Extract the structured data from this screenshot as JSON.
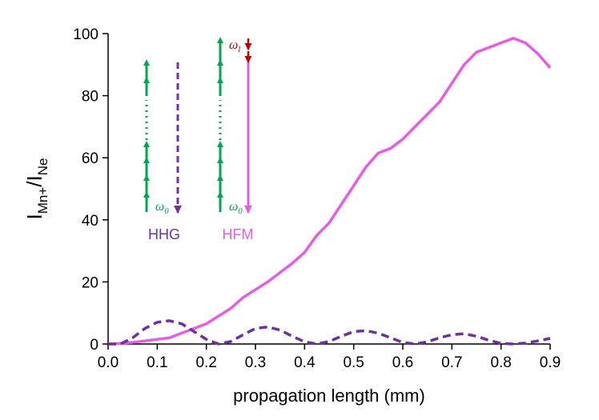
{
  "chart_data": {
    "type": "line",
    "xlabel": "propagation length (mm)",
    "ylabel": {
      "main1": "I",
      "sub1": "Mn+",
      "main2": "/I",
      "sub2": "Ne"
    },
    "x": [
      0,
      0.025,
      0.05,
      0.075,
      0.1,
      0.125,
      0.15,
      0.175,
      0.2,
      0.225,
      0.25,
      0.275,
      0.3,
      0.325,
      0.35,
      0.375,
      0.4,
      0.425,
      0.45,
      0.475,
      0.5,
      0.525,
      0.55,
      0.575,
      0.6,
      0.625,
      0.65,
      0.675,
      0.7,
      0.725,
      0.75,
      0.775,
      0.8,
      0.825,
      0.85,
      0.875,
      0.9
    ],
    "series": [
      {
        "name": "HFM",
        "color": "#e75ce6",
        "dash": false,
        "values": [
          0,
          0.2,
          0.5,
          1,
          1.5,
          2,
          3.5,
          5,
          6.5,
          9,
          11.5,
          15,
          17.5,
          20,
          23,
          26,
          29.5,
          35,
          39,
          45,
          51,
          57,
          61.5,
          63,
          66,
          70,
          74,
          78,
          84,
          90,
          94,
          95.5,
          97,
          98.5,
          97,
          93.5,
          89
        ]
      },
      {
        "name": "HHG",
        "color": "#7030a0",
        "dash": true,
        "values": [
          0,
          0,
          2,
          5,
          7,
          7.5,
          6.5,
          4,
          1.5,
          0,
          0.8,
          3,
          5,
          5.5,
          4.5,
          2.5,
          0.7,
          0,
          0.8,
          2.5,
          4,
          4.3,
          3.5,
          2,
          0.5,
          0,
          0.7,
          2,
          3,
          3.3,
          2.5,
          1.2,
          0.2,
          0,
          0.3,
          1,
          1.8
        ]
      }
    ],
    "xlim": [
      0,
      0.9
    ],
    "xticks": [
      {
        "value": 0,
        "label": "0.0"
      },
      0.1,
      0.2,
      0.3,
      0.4,
      0.5,
      0.6,
      0.7,
      0.8,
      0.9
    ],
    "ylim": [
      0,
      100
    ],
    "yticks": [
      0,
      20,
      40,
      60,
      80,
      100
    ],
    "annotations": {
      "omega0_hhg": {
        "symbol": "ω",
        "sub": "0"
      },
      "omega0_hfm": {
        "symbol": "ω",
        "sub": "0"
      },
      "omegal": {
        "symbol": "ω",
        "sub": "l"
      }
    }
  }
}
